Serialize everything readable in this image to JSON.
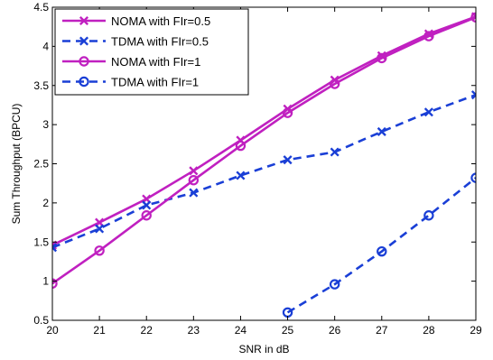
{
  "chart_data": {
    "type": "line",
    "title": "",
    "xlabel": "SNR in dB",
    "ylabel": "Sum Throughput (BPCU)",
    "x": [
      20,
      21,
      22,
      23,
      24,
      25,
      26,
      27,
      28,
      29
    ],
    "xlim": [
      20,
      29
    ],
    "ylim": [
      0.5,
      4.5
    ],
    "xticks": [
      20,
      21,
      22,
      23,
      24,
      25,
      26,
      27,
      28,
      29
    ],
    "yticks": [
      0.5,
      1,
      1.5,
      2,
      2.5,
      3,
      3.5,
      4,
      4.5
    ],
    "grid": false,
    "legend_position": "top-left",
    "series": [
      {
        "name": "NOMA with FIr=0.5",
        "color": "#c020c0",
        "line_style": "solid",
        "marker": "x",
        "x": [
          20,
          21,
          22,
          23,
          24,
          25,
          26,
          27,
          28,
          29
        ],
        "values": [
          1.46,
          1.75,
          2.05,
          2.41,
          2.8,
          3.2,
          3.57,
          3.88,
          4.16,
          4.38
        ]
      },
      {
        "name": "TDMA with FIr=0.5",
        "color": "#1a3fd6",
        "line_style": "dashed",
        "marker": "x",
        "x": [
          20,
          21,
          22,
          23,
          24,
          25,
          26,
          27,
          28,
          29
        ],
        "values": [
          1.43,
          1.67,
          1.97,
          2.13,
          2.35,
          2.55,
          2.65,
          2.91,
          3.16,
          3.38
        ]
      },
      {
        "name": "NOMA with FIr=1",
        "color": "#c020c0",
        "line_style": "solid",
        "marker": "circle",
        "x": [
          20,
          21,
          22,
          23,
          24,
          25,
          26,
          27,
          28,
          29
        ],
        "values": [
          0.97,
          1.39,
          1.84,
          2.29,
          2.73,
          3.15,
          3.52,
          3.85,
          4.13,
          4.37
        ]
      },
      {
        "name": "TDMA with FIr=1",
        "color": "#1a3fd6",
        "line_style": "dashed",
        "marker": "circle",
        "x": [
          25,
          26,
          27,
          28,
          29
        ],
        "values": [
          0.6,
          0.96,
          1.38,
          1.84,
          2.32
        ]
      }
    ]
  }
}
